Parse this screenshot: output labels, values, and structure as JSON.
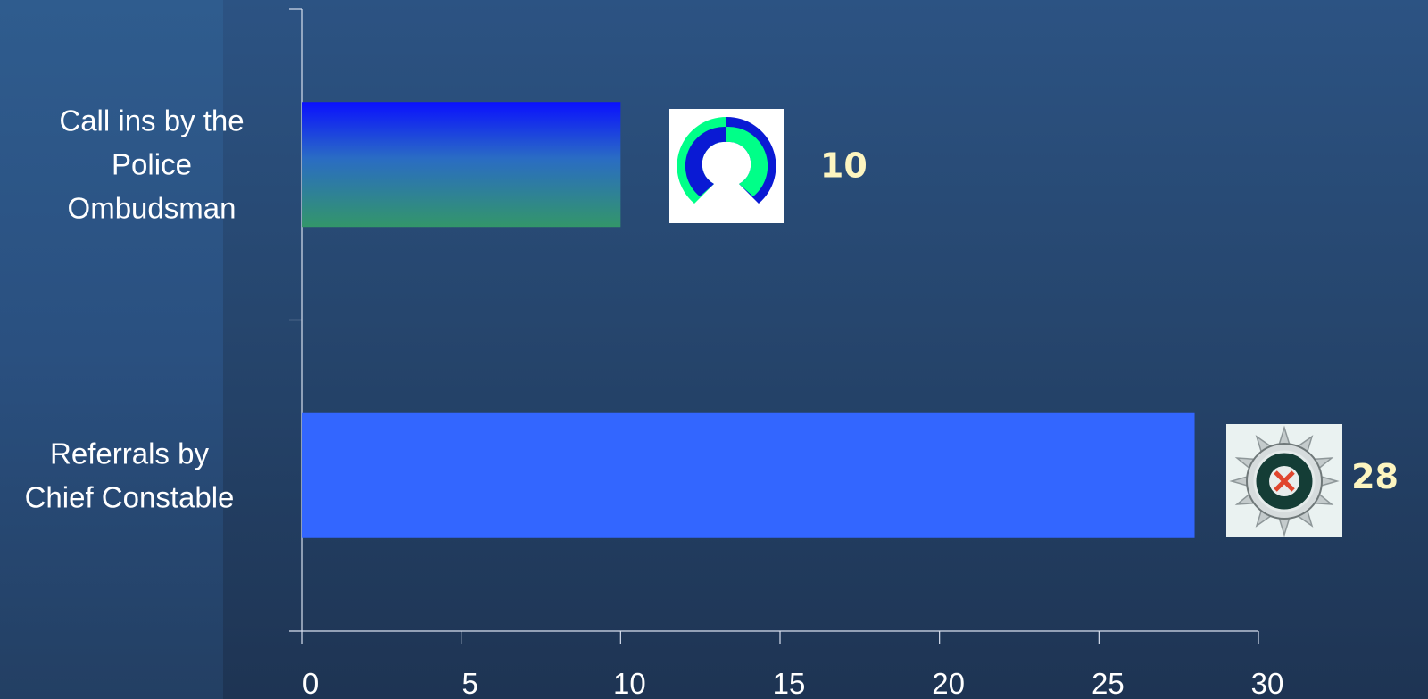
{
  "chart_data": {
    "type": "bar",
    "orientation": "horizontal",
    "categories": [
      "Call ins by the Police Ombudsman",
      "Referrals by Chief Constable"
    ],
    "category_label_lines": [
      [
        "Call ins by the",
        "Police",
        "Ombudsman"
      ],
      [
        "Referrals by",
        "Chief Constable"
      ]
    ],
    "values": [
      10,
      28
    ],
    "data_labels": [
      "10",
      "28"
    ],
    "xlim": [
      0,
      30
    ],
    "x_ticks": [
      0,
      5,
      10,
      15,
      20,
      25,
      30
    ],
    "x_tick_labels": [
      "0",
      "5",
      "10",
      "15",
      "20",
      "25",
      "30"
    ],
    "grid": false,
    "legend": "none",
    "title": "",
    "xlabel": "",
    "ylabel": "",
    "bar_colors": [
      {
        "gradient": [
          "#0a10ff",
          "#2a6cc4",
          "#33966a"
        ]
      },
      {
        "solid": "#3366ff"
      }
    ],
    "logos": [
      "police-ombudsman-logo",
      "psni-badge-logo"
    ]
  },
  "colors": {
    "background_top": "#2c5383",
    "background_bottom": "#1e3453",
    "left_panel": "#2f5c8e",
    "axis": "#d8e0ee",
    "data_label": "#fdf5c0",
    "text": "#ffffff"
  }
}
